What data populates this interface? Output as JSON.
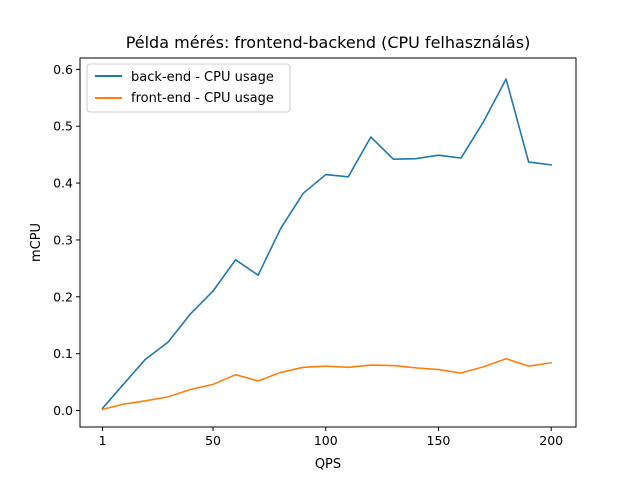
{
  "chart_data": {
    "type": "line",
    "title": "Példa mérés: frontend-backend (CPU felhasználás)",
    "xlabel": "QPS",
    "ylabel": "mCPU",
    "xlim": [
      -9,
      211
    ],
    "ylim": [
      -0.029,
      0.62
    ],
    "xticks": [
      1,
      50,
      100,
      150,
      200
    ],
    "yticks": [
      0.0,
      0.1,
      0.2,
      0.3,
      0.4,
      0.5,
      0.6
    ],
    "ytick_labels": [
      "0.0",
      "0.1",
      "0.2",
      "0.3",
      "0.4",
      "0.5",
      "0.6"
    ],
    "grid": false,
    "legend_position": "top-left",
    "x": [
      1,
      10,
      20,
      30,
      40,
      50,
      60,
      70,
      80,
      90,
      100,
      110,
      120,
      130,
      140,
      150,
      160,
      170,
      180,
      190,
      200
    ],
    "series": [
      {
        "name": "back-end - CPU usage",
        "color": "#1f77b4",
        "values": [
          0.004,
          0.045,
          0.09,
          0.12,
          0.17,
          0.21,
          0.265,
          0.238,
          0.32,
          0.382,
          0.415,
          0.411,
          0.481,
          0.442,
          0.443,
          0.449,
          0.444,
          0.508,
          0.583,
          0.437,
          0.432
        ]
      },
      {
        "name": "front-end - CPU usage",
        "color": "#ff7f0e",
        "values": [
          0.002,
          0.011,
          0.017,
          0.024,
          0.037,
          0.046,
          0.063,
          0.052,
          0.067,
          0.076,
          0.078,
          0.076,
          0.08,
          0.079,
          0.075,
          0.072,
          0.066,
          0.077,
          0.091,
          0.078,
          0.084
        ]
      }
    ]
  }
}
